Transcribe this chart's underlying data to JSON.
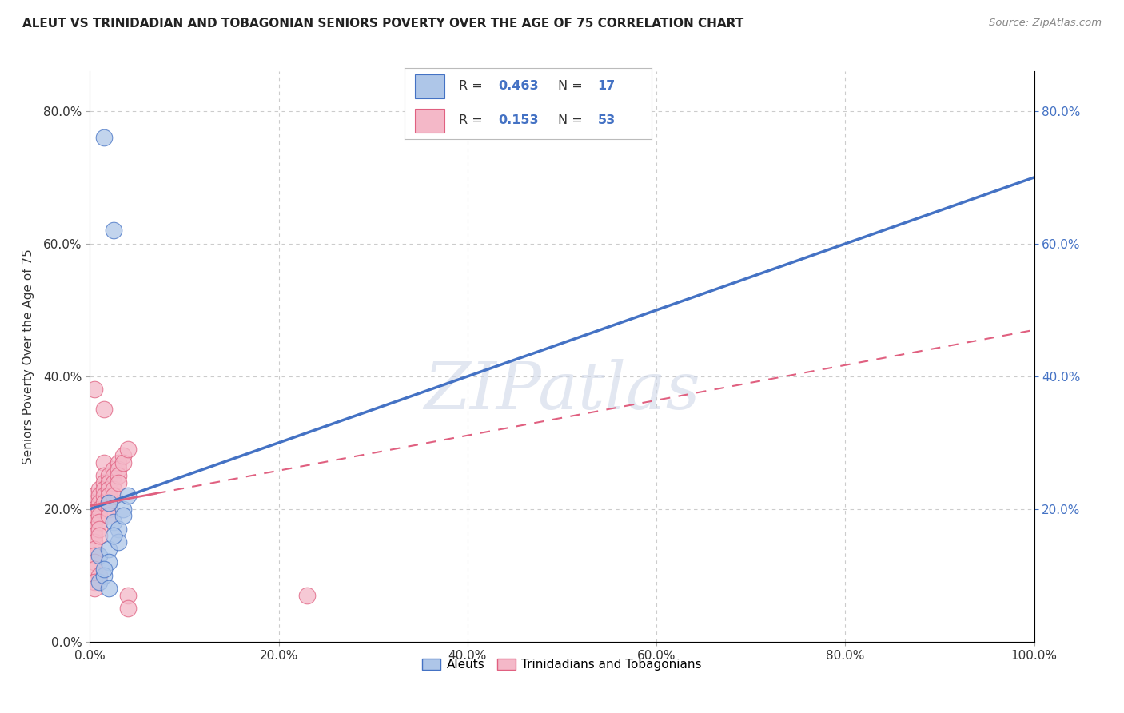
{
  "title": "ALEUT VS TRINIDADIAN AND TOBAGONIAN SENIORS POVERTY OVER THE AGE OF 75 CORRELATION CHART",
  "source": "Source: ZipAtlas.com",
  "ylabel": "Seniors Poverty Over the Age of 75",
  "xlim": [
    0,
    1.0
  ],
  "ylim": [
    0,
    0.86
  ],
  "aleut_R": 0.463,
  "aleut_N": 17,
  "trint_R": 0.153,
  "trint_N": 53,
  "watermark": "ZIPatlas",
  "aleut_color": "#aec6e8",
  "trint_color": "#f4b8c8",
  "aleut_line_color": "#4472c4",
  "trint_line_color": "#e06080",
  "right_axis_color": "#4472c4",
  "grid_color": "#cccccc",
  "aleut_line_y0": 0.2,
  "aleut_line_y1": 0.7,
  "trint_line_y0": 0.205,
  "trint_line_y1": 0.47,
  "aleuts_x": [
    0.015,
    0.025,
    0.01,
    0.01,
    0.02,
    0.025,
    0.03,
    0.035,
    0.03,
    0.02,
    0.015,
    0.025,
    0.035,
    0.04,
    0.015,
    0.02,
    0.02
  ],
  "aleuts_y": [
    0.76,
    0.62,
    0.13,
    0.09,
    0.14,
    0.18,
    0.17,
    0.2,
    0.15,
    0.12,
    0.1,
    0.16,
    0.19,
    0.22,
    0.11,
    0.08,
    0.21
  ],
  "trint_x": [
    0.005,
    0.005,
    0.005,
    0.005,
    0.005,
    0.005,
    0.005,
    0.005,
    0.005,
    0.005,
    0.005,
    0.005,
    0.01,
    0.01,
    0.01,
    0.01,
    0.01,
    0.01,
    0.01,
    0.01,
    0.015,
    0.015,
    0.015,
    0.015,
    0.015,
    0.015,
    0.015,
    0.02,
    0.02,
    0.02,
    0.02,
    0.02,
    0.02,
    0.02,
    0.025,
    0.025,
    0.025,
    0.025,
    0.025,
    0.03,
    0.03,
    0.03,
    0.03,
    0.035,
    0.035,
    0.04,
    0.04,
    0.04,
    0.23,
    0.01,
    0.005,
    0.005,
    0.005
  ],
  "trint_y": [
    0.22,
    0.21,
    0.2,
    0.19,
    0.18,
    0.17,
    0.16,
    0.15,
    0.14,
    0.13,
    0.12,
    0.11,
    0.23,
    0.22,
    0.21,
    0.2,
    0.19,
    0.18,
    0.17,
    0.16,
    0.35,
    0.27,
    0.25,
    0.24,
    0.23,
    0.22,
    0.21,
    0.25,
    0.24,
    0.23,
    0.22,
    0.21,
    0.2,
    0.19,
    0.26,
    0.25,
    0.24,
    0.23,
    0.22,
    0.27,
    0.26,
    0.25,
    0.24,
    0.28,
    0.27,
    0.29,
    0.07,
    0.05,
    0.07,
    0.1,
    0.38,
    0.09,
    0.08
  ]
}
